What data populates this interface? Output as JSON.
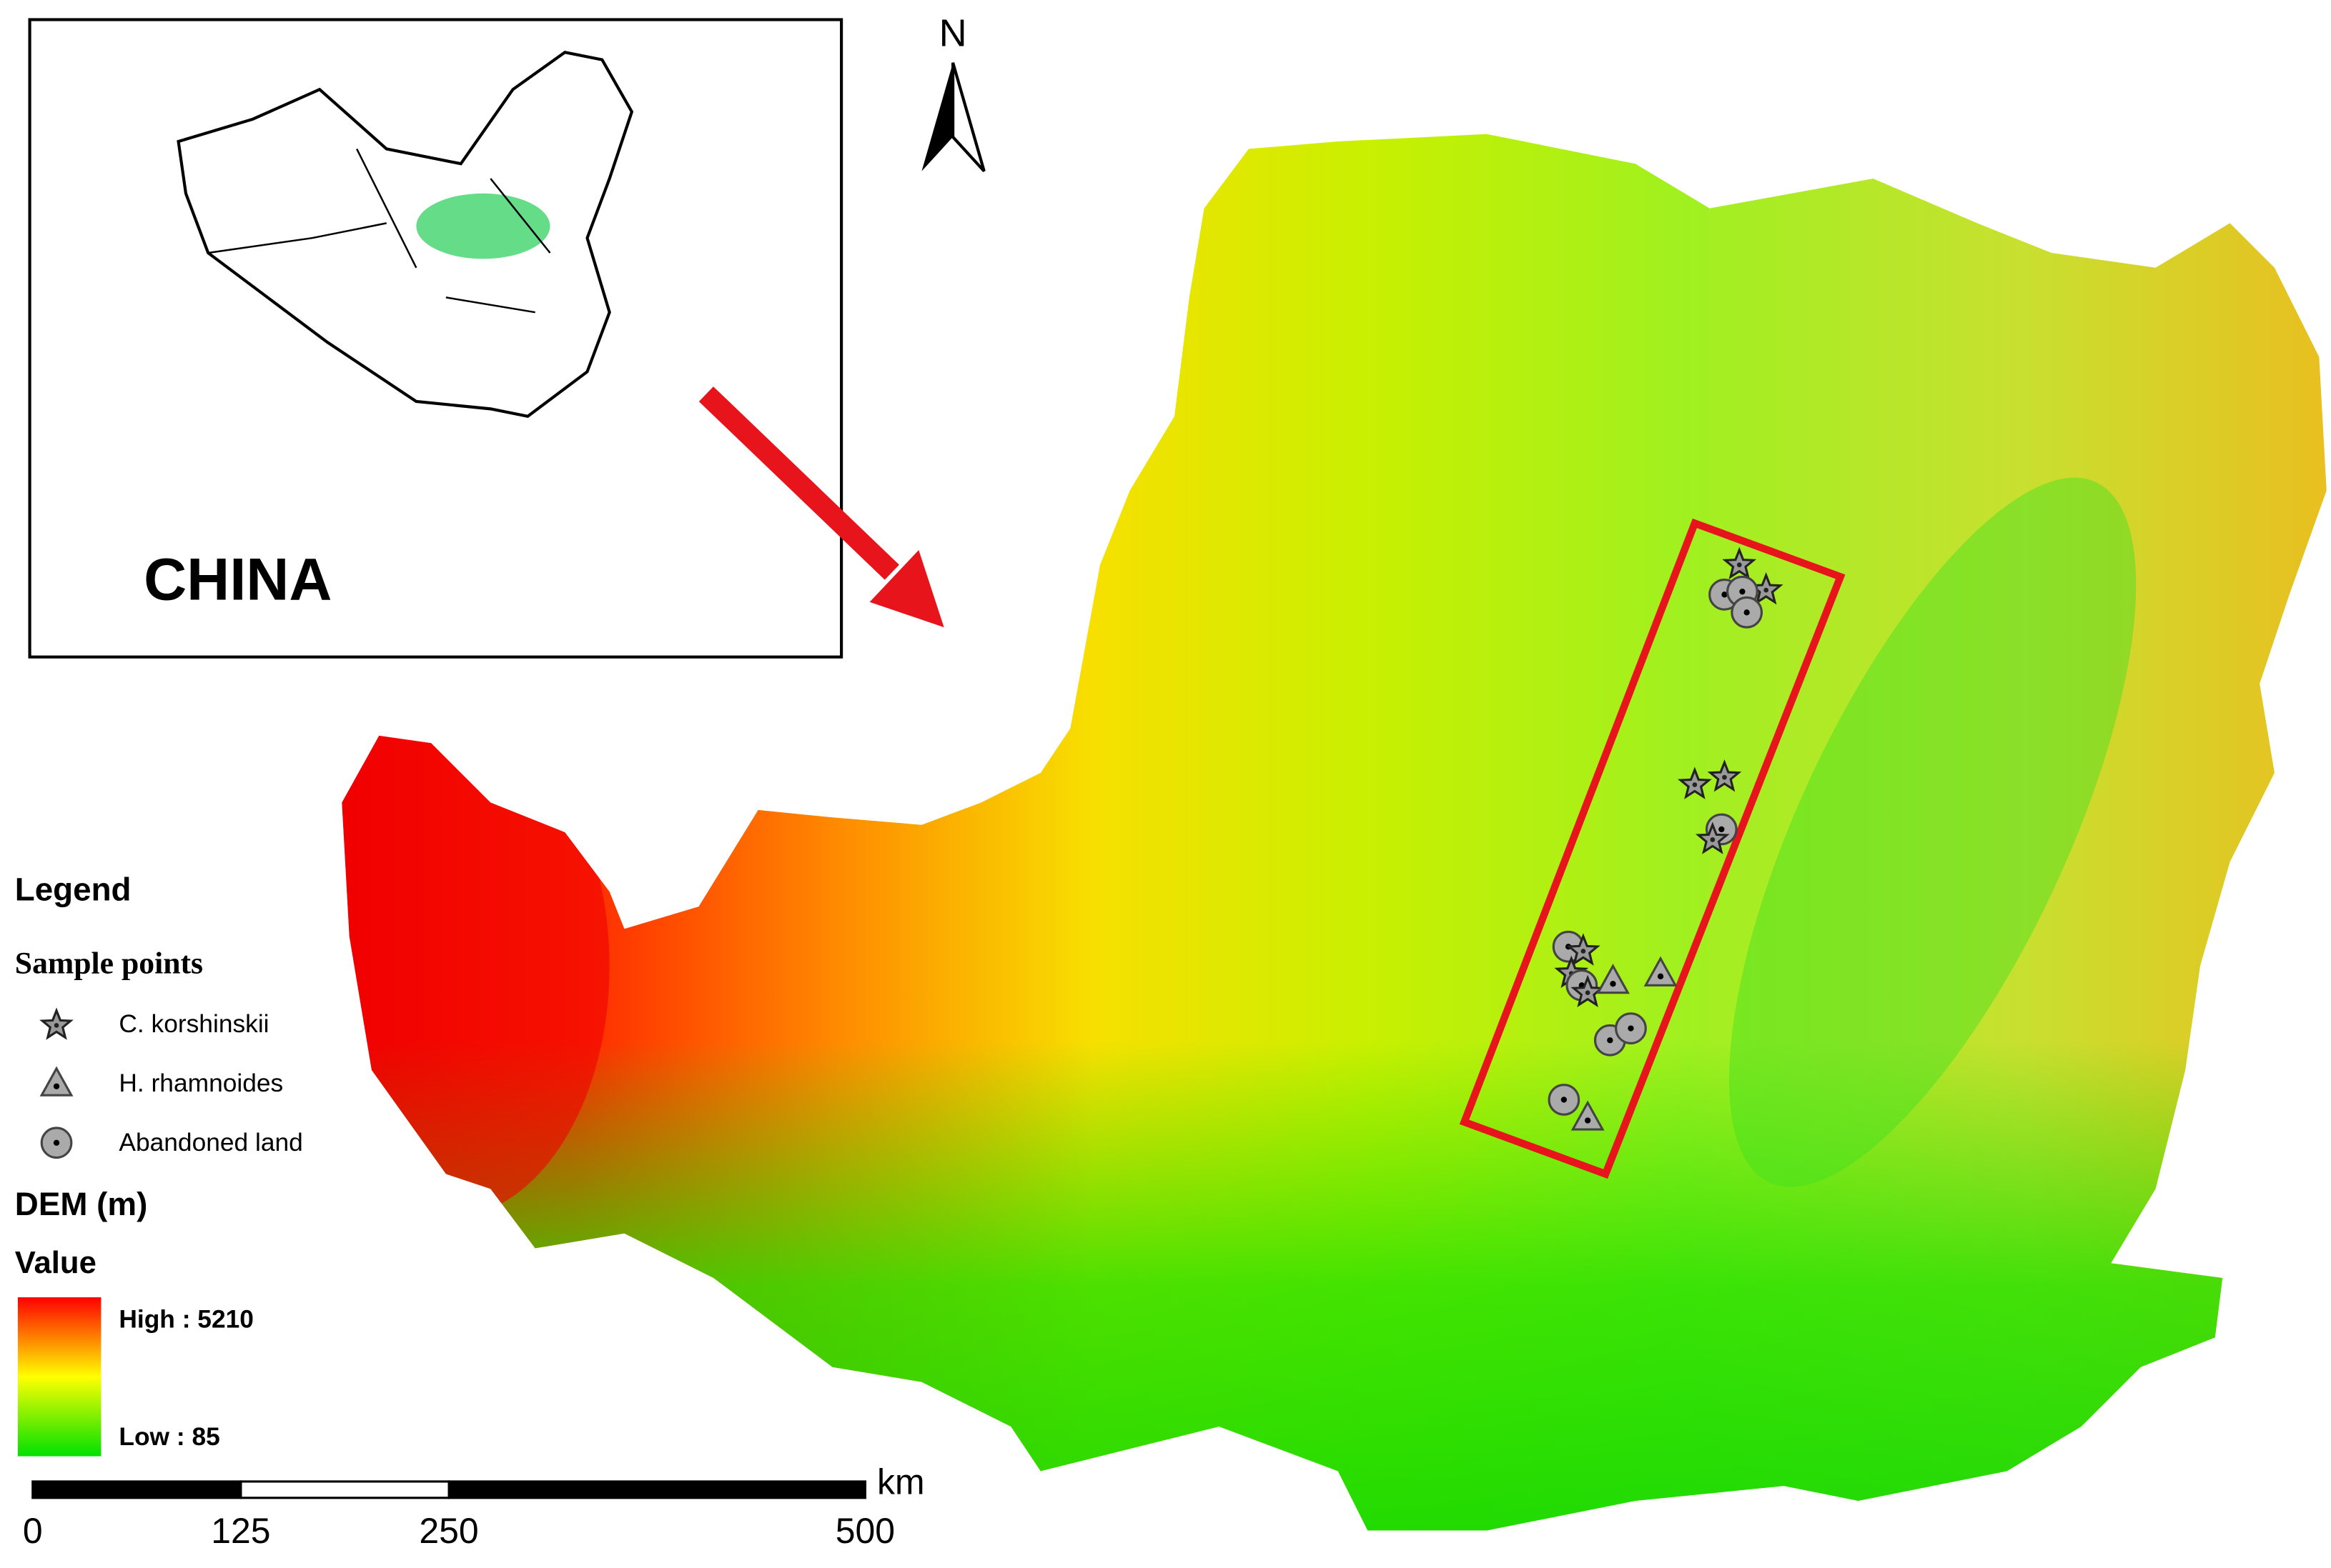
{
  "inset": {
    "label": "CHINA"
  },
  "north_arrow": {
    "label": "N"
  },
  "legend": {
    "title": "Legend",
    "group_title": "Sample points",
    "items": [
      "C. korshinskii",
      "H. rhamnoides",
      "Abandoned land"
    ],
    "dem_title": "DEM (m)",
    "value_title": "Value",
    "high_label": "High : 5210",
    "low_label": "Low : 85"
  },
  "scale_bar": {
    "unit": "km",
    "ticks": [
      0,
      125,
      250,
      500
    ]
  }
}
